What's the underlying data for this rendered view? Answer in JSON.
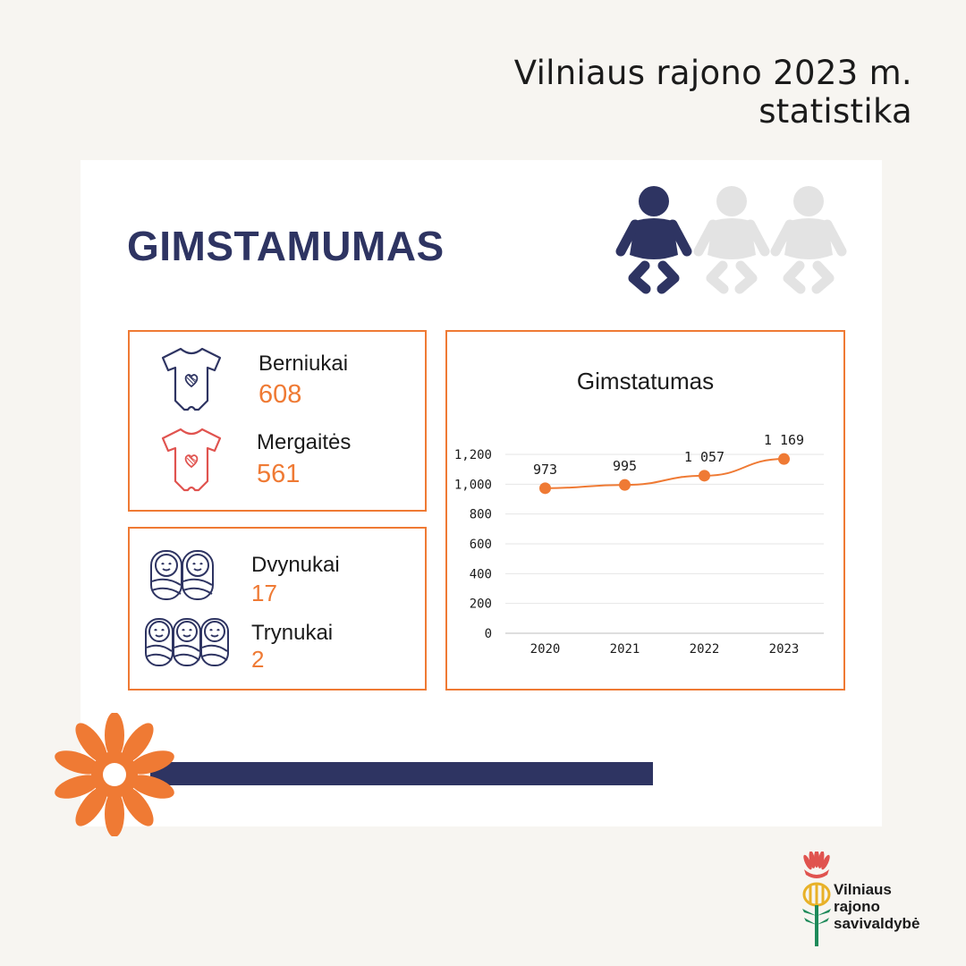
{
  "header": {
    "title": "Vilniaus rajono 2023 m. statistika"
  },
  "main": {
    "title": "GIMSTAMUMAS"
  },
  "gender": {
    "boys_label": "Berniukai",
    "boys_value": "608",
    "girls_label": "Mergaitės",
    "girls_value": "561"
  },
  "multiples": {
    "twins_label": "Dvynukai",
    "twins_value": "17",
    "triplets_label": "Trynukai",
    "triplets_value": "2"
  },
  "colors": {
    "accent": "#ef7a34",
    "navy": "#2e3462",
    "boy_icon": "#2e3462",
    "girl_icon": "#e0534f",
    "inactive_baby": "#e3e3e3"
  },
  "icons": {
    "baby_active": "baby-figure-icon",
    "baby_inactive": "baby-figure-icon",
    "boy": "bodysuit-icon",
    "girl": "bodysuit-icon",
    "twins": "swaddled-babies-icon",
    "triplets": "swaddled-babies-icon",
    "decor": "flower-icon"
  },
  "logo": {
    "line1": "Vilniaus",
    "line2": "rajono",
    "line3": "savivaldybė"
  },
  "chart_data": {
    "type": "line",
    "title": "Gimstatumas",
    "categories": [
      "2020",
      "2021",
      "2022",
      "2023"
    ],
    "values": [
      973,
      995,
      1057,
      1169
    ],
    "value_labels": [
      "973",
      "995",
      "1 057",
      "1 169"
    ],
    "yticks": [
      "0",
      "200",
      "400",
      "600",
      "800",
      "1,000",
      "1,200"
    ],
    "ylim": [
      0,
      1200
    ],
    "grid": true,
    "xlabel": "",
    "ylabel": ""
  }
}
